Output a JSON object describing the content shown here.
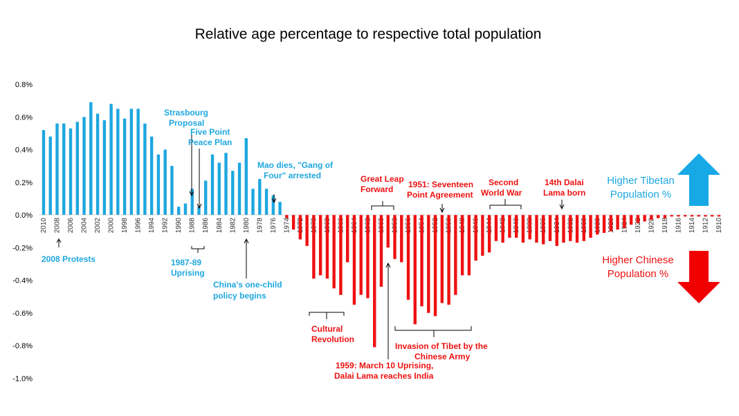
{
  "chart_data": {
    "type": "bar",
    "title": "Relative age percentage to respective total population",
    "xlabel": "",
    "ylabel": "",
    "ylim": [
      -1.0,
      0.8
    ],
    "y_ticks": [
      "0.8%",
      "0.6%",
      "0.4%",
      "0.2%",
      "0.0%",
      "-0.2%",
      "-0.4%",
      "-0.6%",
      "-0.8%",
      "-1.0%"
    ],
    "grid": false,
    "x_axis_order": "descending years left to right",
    "x_tick_labels": [
      "2010",
      "2008",
      "2006",
      "2004",
      "2002",
      "2000",
      "1998",
      "1996",
      "1994",
      "1992",
      "1990",
      "1988",
      "1986",
      "1984",
      "1982",
      "1980",
      "1978",
      "1976",
      "1974",
      "1972",
      "1970",
      "1968",
      "1966",
      "1964",
      "1962",
      "1960",
      "1958",
      "1956",
      "1954",
      "1952",
      "1950",
      "1948",
      "1946",
      "1944",
      "1942",
      "1940",
      "1938",
      "1936",
      "1934",
      "1932",
      "1930",
      "1928",
      "1926",
      "1924",
      "1922",
      "1920",
      "1918",
      "1916",
      "1914",
      "1912",
      "1910"
    ],
    "colors": {
      "positive": "#1ea7df",
      "negative": "#ee1111"
    },
    "x": [
      2010,
      2009,
      2008,
      2007,
      2006,
      2005,
      2004,
      2003,
      2002,
      2001,
      2000,
      1999,
      1998,
      1997,
      1996,
      1995,
      1994,
      1993,
      1992,
      1991,
      1990,
      1989,
      1988,
      1987,
      1986,
      1985,
      1984,
      1983,
      1982,
      1981,
      1980,
      1979,
      1978,
      1977,
      1976,
      1975,
      1974,
      1973,
      1972,
      1971,
      1970,
      1969,
      1968,
      1967,
      1966,
      1965,
      1964,
      1963,
      1962,
      1961,
      1960,
      1959,
      1958,
      1957,
      1956,
      1955,
      1954,
      1953,
      1952,
      1951,
      1950,
      1949,
      1948,
      1947,
      1946,
      1945,
      1944,
      1943,
      1942,
      1941,
      1940,
      1939,
      1938,
      1937,
      1936,
      1935,
      1934,
      1933,
      1932,
      1931,
      1930,
      1929,
      1928,
      1927,
      1926,
      1925,
      1924,
      1923,
      1922,
      1921,
      1920,
      1919,
      1918,
      1917,
      1916,
      1915,
      1914,
      1913,
      1912,
      1911,
      1910
    ],
    "values": [
      0.52,
      0.48,
      0.56,
      0.56,
      0.53,
      0.57,
      0.6,
      0.69,
      0.62,
      0.58,
      0.68,
      0.65,
      0.59,
      0.65,
      0.65,
      0.56,
      0.48,
      0.37,
      0.4,
      0.3,
      0.05,
      0.07,
      0.16,
      0.05,
      0.21,
      0.37,
      0.32,
      0.38,
      0.27,
      0.32,
      0.47,
      0.16,
      0.22,
      0.16,
      0.12,
      0.08,
      -0.02,
      -0.09,
      -0.15,
      -0.19,
      -0.39,
      -0.37,
      -0.39,
      -0.45,
      -0.49,
      -0.29,
      -0.55,
      -0.49,
      -0.51,
      -0.81,
      -0.44,
      -0.2,
      -0.27,
      -0.29,
      -0.52,
      -0.67,
      -0.56,
      -0.6,
      -0.62,
      -0.54,
      -0.55,
      -0.49,
      -0.37,
      -0.37,
      -0.28,
      -0.25,
      -0.23,
      -0.16,
      -0.17,
      -0.14,
      -0.14,
      -0.17,
      -0.15,
      -0.17,
      -0.18,
      -0.16,
      -0.19,
      -0.17,
      -0.16,
      -0.17,
      -0.16,
      -0.14,
      -0.12,
      -0.11,
      -0.1,
      -0.09,
      -0.08,
      -0.06,
      -0.05,
      -0.04,
      -0.03,
      -0.02,
      -0.02,
      -0.01,
      -0.01,
      -0.01,
      -0.01,
      -0.01,
      -0.01,
      -0.01,
      -0.01
    ]
  },
  "annotations": {
    "protests_2008": "2008 Protests",
    "strasbourg_1": "Strasbourg",
    "strasbourg_2": "Proposal",
    "five_point_1": "Five Point",
    "five_point_2": "Peace Plan",
    "uprising_1": "1987-89",
    "uprising_2": "Uprising",
    "mao_1": "Mao dies, \"Gang of",
    "mao_2": "Four\" arrested",
    "one_child_1": "China's one-child",
    "one_child_2": "policy begins",
    "great_leap_1": "Great Leap",
    "great_leap_2": "Forward",
    "seventeen_1": "1951: Seventeen",
    "seventeen_2": "Point Agreement",
    "ww2_1": "Second",
    "ww2_2": "World War",
    "dalai_born_1": "14th Dalai",
    "dalai_born_2": "Lama born",
    "cultural_1": "Cultural",
    "cultural_2": "Revolution",
    "invasion_1": "Invasion of Tibet by the",
    "invasion_2": "Chinese Army",
    "march10_1": "1959: March 10 Uprising,",
    "march10_2": "Dalai Lama reaches India"
  },
  "side_labels": {
    "tibetan_1": "Higher Tibetan",
    "tibetan_2": "Population %",
    "chinese_1": "Higher  Chinese",
    "chinese_2": "Population %"
  },
  "colors": {
    "blue": "#1ea7df",
    "red": "#ee1111",
    "arrow_blue": "#17a9e6",
    "arrow_red": "#f00000"
  }
}
